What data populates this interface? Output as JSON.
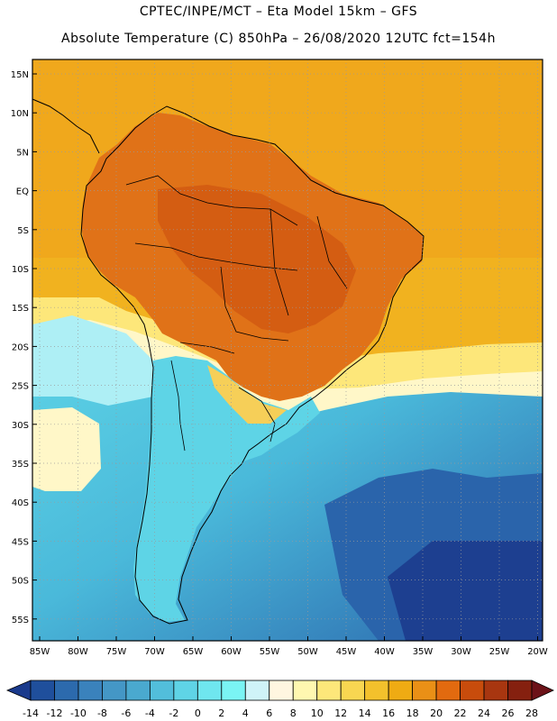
{
  "header": {
    "line1": "CPTEC/INPE/MCT –  Eta Model 15km – GFS",
    "line2": "Absolute Temperature (C) 850hPa – 26/08/2020 12UTC fct=154h"
  },
  "axes": {
    "lat_labels": [
      "15N",
      "10N",
      "5N",
      "EQ",
      "5S",
      "10S",
      "15S",
      "20S",
      "25S",
      "30S",
      "35S",
      "40S",
      "45S",
      "50S",
      "55S"
    ],
    "lon_labels": [
      "85W",
      "80W",
      "75W",
      "70W",
      "65W",
      "60W",
      "55W",
      "50W",
      "45W",
      "40W",
      "35W",
      "30W",
      "25W",
      "20W"
    ]
  },
  "colorbar": {
    "labels": [
      "-14",
      "-12",
      "-10",
      "-8",
      "-6",
      "-4",
      "-2",
      "0",
      "2",
      "4",
      "6",
      "8",
      "10",
      "12",
      "14",
      "16",
      "18",
      "20",
      "22",
      "24",
      "26",
      "28"
    ],
    "colors": [
      "#1a3a8c",
      "#1f4f9c",
      "#2c6aad",
      "#3a82bc",
      "#4497c6",
      "#4aa9cf",
      "#52bedb",
      "#5fd4e6",
      "#6fe6ef",
      "#7af4f4",
      "#cff3f8",
      "#fff6e0",
      "#fff7b0",
      "#fde77a",
      "#f8d651",
      "#f3c12c",
      "#efab13",
      "#ea9016",
      "#e26a0f",
      "#c84c0c",
      "#a83610",
      "#85200f",
      "#6c1218"
    ]
  },
  "map": {
    "colors": {
      "ocean_warm": "#f1b21f",
      "ocean_warm2": "#eea01a",
      "land_hot": "#e07218",
      "land_hotter": "#d45d12",
      "land_cool": "#f6cf58",
      "yellow_band": "#fde77a",
      "pale": "#fff7c8",
      "cyan_light": "#aeeff5",
      "cyan": "#5ed4e6",
      "cyan_mid": "#4ac2de",
      "blue_mid": "#3d93c5",
      "blue_deep": "#2a64ab",
      "blue_navy": "#1d3f90",
      "coast": "#000000",
      "grid": "#9a9a9a"
    }
  }
}
